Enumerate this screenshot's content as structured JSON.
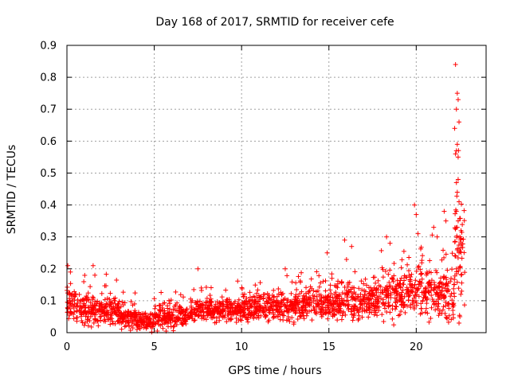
{
  "chart_data": {
    "type": "scatter",
    "title": "Day 168 of 2017, SRMTID for receiver cefe",
    "xlabel": "GPS time / hours",
    "ylabel": "SRMTID / TECUs",
    "xlim": [
      0,
      24
    ],
    "ylim": [
      0,
      0.9
    ],
    "grid": true,
    "marker": "plus",
    "color": "#ff0000",
    "x_ticks": [
      0,
      5,
      10,
      15,
      20
    ],
    "x_tick_labels": [
      "0",
      "5",
      "10",
      "15",
      "20"
    ],
    "y_ticks": [
      0,
      0.1,
      0.2,
      0.3,
      0.4,
      0.5,
      0.6,
      0.7,
      0.8,
      0.9
    ],
    "y_tick_labels": [
      "0",
      "0.1",
      "0.2",
      "0.3",
      "0.4",
      "0.5",
      "0.6",
      "0.7",
      "0.8",
      "0.9"
    ],
    "envelope_note": "approximate local mean/spread of SRMTID per hour band",
    "envelope": [
      {
        "x0": 0.0,
        "x1": 0.5,
        "mean": 0.09,
        "spread": 0.06
      },
      {
        "x0": 0.5,
        "x1": 1.5,
        "mean": 0.07,
        "spread": 0.05
      },
      {
        "x0": 1.5,
        "x1": 3.0,
        "mean": 0.07,
        "spread": 0.05
      },
      {
        "x0": 3.0,
        "x1": 4.0,
        "mean": 0.05,
        "spread": 0.04
      },
      {
        "x0": 4.0,
        "x1": 5.0,
        "mean": 0.03,
        "spread": 0.03
      },
      {
        "x0": 5.0,
        "x1": 7.0,
        "mean": 0.05,
        "spread": 0.04
      },
      {
        "x0": 7.0,
        "x1": 10.0,
        "mean": 0.07,
        "spread": 0.04
      },
      {
        "x0": 10.0,
        "x1": 13.0,
        "mean": 0.08,
        "spread": 0.05
      },
      {
        "x0": 13.0,
        "x1": 15.0,
        "mean": 0.09,
        "spread": 0.05
      },
      {
        "x0": 15.0,
        "x1": 18.0,
        "mean": 0.1,
        "spread": 0.06
      },
      {
        "x0": 18.0,
        "x1": 20.0,
        "mean": 0.12,
        "spread": 0.08
      },
      {
        "x0": 20.0,
        "x1": 21.5,
        "mean": 0.13,
        "spread": 0.09
      },
      {
        "x0": 21.5,
        "x1": 22.2,
        "mean": 0.12,
        "spread": 0.1
      },
      {
        "x0": 22.2,
        "x1": 22.8,
        "mean": 0.25,
        "spread": 0.2
      }
    ],
    "points_per_hour": 90,
    "highlight_points": [
      {
        "x": 0.05,
        "y": 0.21
      },
      {
        "x": 0.2,
        "y": 0.19
      },
      {
        "x": 1.5,
        "y": 0.21
      },
      {
        "x": 1.6,
        "y": 0.18
      },
      {
        "x": 7.5,
        "y": 0.2
      },
      {
        "x": 12.5,
        "y": 0.2
      },
      {
        "x": 14.9,
        "y": 0.25
      },
      {
        "x": 15.9,
        "y": 0.29
      },
      {
        "x": 16.3,
        "y": 0.27
      },
      {
        "x": 18.3,
        "y": 0.3
      },
      {
        "x": 18.5,
        "y": 0.28
      },
      {
        "x": 19.9,
        "y": 0.4
      },
      {
        "x": 20.0,
        "y": 0.37
      },
      {
        "x": 20.1,
        "y": 0.31
      },
      {
        "x": 21.0,
        "y": 0.33
      },
      {
        "x": 21.2,
        "y": 0.3
      },
      {
        "x": 21.6,
        "y": 0.38
      },
      {
        "x": 21.7,
        "y": 0.35
      },
      {
        "x": 22.25,
        "y": 0.84
      },
      {
        "x": 22.35,
        "y": 0.75
      },
      {
        "x": 22.4,
        "y": 0.73
      },
      {
        "x": 22.3,
        "y": 0.7
      },
      {
        "x": 22.45,
        "y": 0.66
      },
      {
        "x": 22.2,
        "y": 0.64
      },
      {
        "x": 22.35,
        "y": 0.59
      },
      {
        "x": 22.3,
        "y": 0.57
      },
      {
        "x": 22.25,
        "y": 0.56
      },
      {
        "x": 22.4,
        "y": 0.55
      },
      {
        "x": 22.4,
        "y": 0.48
      },
      {
        "x": 22.3,
        "y": 0.47
      },
      {
        "x": 22.35,
        "y": 0.44
      },
      {
        "x": 22.45,
        "y": 0.41
      },
      {
        "x": 22.3,
        "y": 0.38
      },
      {
        "x": 22.4,
        "y": 0.35
      },
      {
        "x": 22.35,
        "y": 0.33
      },
      {
        "x": 22.5,
        "y": 0.3
      },
      {
        "x": 22.45,
        "y": 0.25
      },
      {
        "x": 22.3,
        "y": 0.2
      },
      {
        "x": 22.6,
        "y": 0.13
      },
      {
        "x": 22.55,
        "y": 0.12
      },
      {
        "x": 22.5,
        "y": 0.05
      },
      {
        "x": 22.45,
        "y": 0.03
      }
    ]
  }
}
